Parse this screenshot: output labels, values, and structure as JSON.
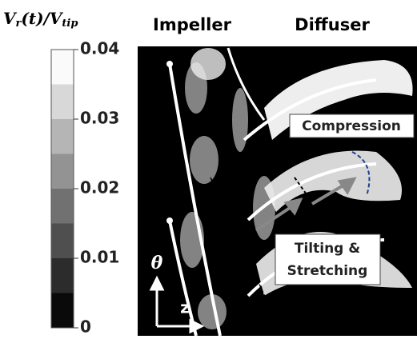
{
  "colorbar": {
    "title": {
      "v1": "V",
      "sub1": "r",
      "mid": "(t)/V",
      "sub2": "tip"
    },
    "lim": [
      0,
      0.04
    ],
    "ticks": [
      0,
      0.01,
      0.02,
      0.03,
      0.04
    ]
  },
  "labels": {
    "impeller": "Impeller",
    "diffuser": "Diffuser",
    "compression": "Compression",
    "tilting": [
      "Tilting &",
      "Stretching"
    ],
    "theta": "θ",
    "z": "z"
  }
}
